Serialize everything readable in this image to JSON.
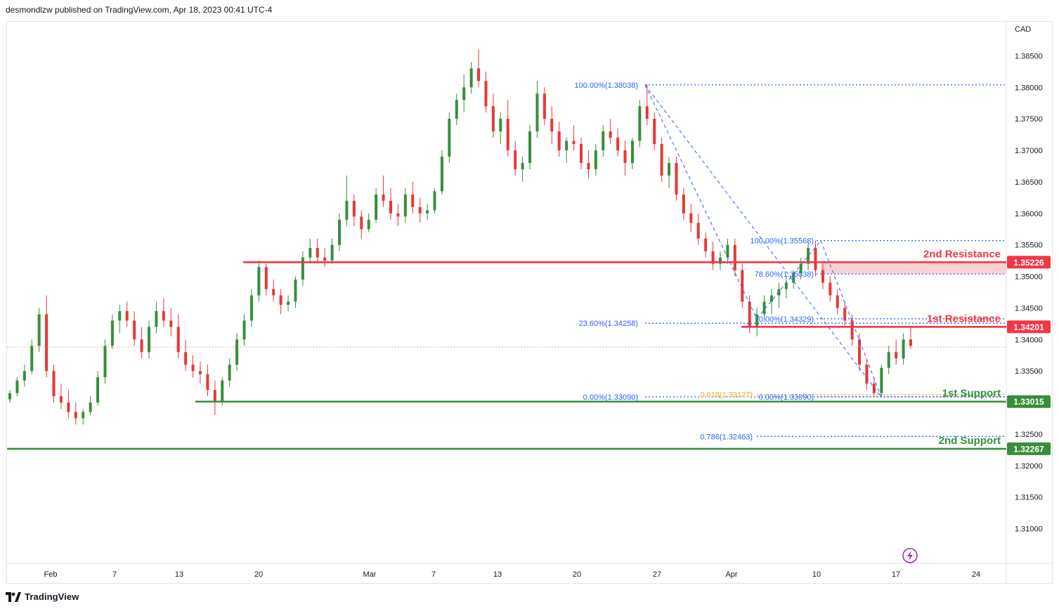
{
  "header": {
    "published_text": "desmondlzw published on TradingView.com, Apr 18, 2023 00:41 UTC-4"
  },
  "footer": {
    "brand": "TradingView"
  },
  "colors": {
    "up": "#388e3c",
    "down": "#e53935",
    "resistance": "#f23645",
    "support": "#388e3c",
    "fib": "#2962ff",
    "fib_golden": "#f5a623",
    "current_price_line": "#e57373",
    "resistance_zone": "#f7c6c6"
  },
  "chart_data": {
    "type": "candlestick",
    "symbol_currency": "CAD",
    "ylim": [
      1.3045,
      1.3905
    ],
    "y_ticks": [
      "1.38500",
      "1.38000",
      "1.37500",
      "1.37000",
      "1.36500",
      "1.36000",
      "1.35500",
      "1.35000",
      "1.34500",
      "1.34000",
      "1.33500",
      "1.32500",
      "1.32000",
      "1.31500",
      "1.31000"
    ],
    "x_ticks": [
      "Feb",
      "7",
      "13",
      "20",
      "Mar",
      "7",
      "13",
      "20",
      "27",
      "Apr",
      "10",
      "17",
      "24"
    ],
    "candles_ohlc": [
      [
        1.3305,
        1.332,
        1.33,
        1.3315
      ],
      [
        1.3315,
        1.334,
        1.331,
        1.3335
      ],
      [
        1.3335,
        1.336,
        1.3325,
        1.335
      ],
      [
        1.335,
        1.34,
        1.3345,
        1.339
      ],
      [
        1.339,
        1.345,
        1.338,
        1.344
      ],
      [
        1.344,
        1.347,
        1.334,
        1.335
      ],
      [
        1.335,
        1.336,
        1.33,
        1.331
      ],
      [
        1.331,
        1.333,
        1.329,
        1.33
      ],
      [
        1.33,
        1.332,
        1.3275,
        1.3285
      ],
      [
        1.3285,
        1.33,
        1.3265,
        1.3275
      ],
      [
        1.3275,
        1.329,
        1.3265,
        1.3285
      ],
      [
        1.3285,
        1.331,
        1.328,
        1.33
      ],
      [
        1.33,
        1.335,
        1.3295,
        1.334
      ],
      [
        1.334,
        1.34,
        1.333,
        1.339
      ],
      [
        1.339,
        1.344,
        1.3385,
        1.343
      ],
      [
        1.343,
        1.3455,
        1.341,
        1.3445
      ],
      [
        1.3445,
        1.346,
        1.342,
        1.343
      ],
      [
        1.343,
        1.3445,
        1.339,
        1.34
      ],
      [
        1.34,
        1.342,
        1.337,
        1.338
      ],
      [
        1.338,
        1.343,
        1.337,
        1.342
      ],
      [
        1.342,
        1.346,
        1.341,
        1.3445
      ],
      [
        1.3445,
        1.3465,
        1.342,
        1.343
      ],
      [
        1.343,
        1.345,
        1.3405,
        1.342
      ],
      [
        1.342,
        1.344,
        1.337,
        1.338
      ],
      [
        1.338,
        1.34,
        1.335,
        1.336
      ],
      [
        1.336,
        1.3375,
        1.334,
        1.335
      ],
      [
        1.335,
        1.3365,
        1.333,
        1.3345
      ],
      [
        1.3345,
        1.336,
        1.331,
        1.332
      ],
      [
        1.332,
        1.3335,
        1.328,
        1.33
      ],
      [
        1.33,
        1.334,
        1.3295,
        1.3335
      ],
      [
        1.3335,
        1.337,
        1.3325,
        1.336
      ],
      [
        1.336,
        1.341,
        1.335,
        1.34
      ],
      [
        1.34,
        1.344,
        1.339,
        1.343
      ],
      [
        1.343,
        1.348,
        1.342,
        1.347
      ],
      [
        1.347,
        1.3525,
        1.346,
        1.3515
      ],
      [
        1.3515,
        1.352,
        1.347,
        1.348
      ],
      [
        1.348,
        1.3495,
        1.346,
        1.347
      ],
      [
        1.347,
        1.348,
        1.344,
        1.3455
      ],
      [
        1.3455,
        1.347,
        1.3445,
        1.346
      ],
      [
        1.346,
        1.35,
        1.345,
        1.3495
      ],
      [
        1.3495,
        1.354,
        1.3485,
        1.353
      ],
      [
        1.353,
        1.356,
        1.352,
        1.3545
      ],
      [
        1.3545,
        1.356,
        1.352,
        1.353
      ],
      [
        1.353,
        1.3545,
        1.3515,
        1.3525
      ],
      [
        1.3525,
        1.356,
        1.352,
        1.355
      ],
      [
        1.355,
        1.36,
        1.354,
        1.359
      ],
      [
        1.359,
        1.366,
        1.358,
        1.362
      ],
      [
        1.362,
        1.363,
        1.358,
        1.3595
      ],
      [
        1.3595,
        1.3605,
        1.356,
        1.3575
      ],
      [
        1.3575,
        1.36,
        1.357,
        1.359
      ],
      [
        1.359,
        1.364,
        1.3585,
        1.363
      ],
      [
        1.363,
        1.366,
        1.361,
        1.362
      ],
      [
        1.362,
        1.364,
        1.359,
        1.36
      ],
      [
        1.36,
        1.3615,
        1.358,
        1.3595
      ],
      [
        1.3595,
        1.364,
        1.3585,
        1.363
      ],
      [
        1.363,
        1.365,
        1.36,
        1.361
      ],
      [
        1.361,
        1.3625,
        1.3585,
        1.36
      ],
      [
        1.36,
        1.3615,
        1.359,
        1.3605
      ],
      [
        1.3605,
        1.364,
        1.36,
        1.3635
      ],
      [
        1.3635,
        1.37,
        1.363,
        1.369
      ],
      [
        1.369,
        1.376,
        1.368,
        1.375
      ],
      [
        1.375,
        1.379,
        1.374,
        1.378
      ],
      [
        1.378,
        1.382,
        1.376,
        1.38
      ],
      [
        1.38,
        1.384,
        1.379,
        1.383
      ],
      [
        1.383,
        1.386,
        1.38,
        1.381
      ],
      [
        1.381,
        1.3825,
        1.376,
        1.377
      ],
      [
        1.377,
        1.379,
        1.372,
        1.373
      ],
      [
        1.373,
        1.376,
        1.371,
        1.375
      ],
      [
        1.375,
        1.378,
        1.369,
        1.37
      ],
      [
        1.37,
        1.3715,
        1.366,
        1.367
      ],
      [
        1.367,
        1.369,
        1.365,
        1.368
      ],
      [
        1.368,
        1.374,
        1.367,
        1.373
      ],
      [
        1.373,
        1.381,
        1.372,
        1.379
      ],
      [
        1.379,
        1.38,
        1.374,
        1.375
      ],
      [
        1.375,
        1.377,
        1.371,
        1.373
      ],
      [
        1.373,
        1.3745,
        1.369,
        1.37
      ],
      [
        1.37,
        1.372,
        1.368,
        1.3715
      ],
      [
        1.3715,
        1.374,
        1.37,
        1.371
      ],
      [
        1.371,
        1.372,
        1.367,
        1.368
      ],
      [
        1.368,
        1.37,
        1.3655,
        1.367
      ],
      [
        1.367,
        1.371,
        1.366,
        1.37
      ],
      [
        1.37,
        1.374,
        1.369,
        1.373
      ],
      [
        1.373,
        1.375,
        1.371,
        1.372
      ],
      [
        1.372,
        1.3735,
        1.369,
        1.37
      ],
      [
        1.37,
        1.3715,
        1.366,
        1.368
      ],
      [
        1.368,
        1.372,
        1.367,
        1.3715
      ],
      [
        1.3715,
        1.378,
        1.3705,
        1.377
      ],
      [
        1.377,
        1.3805,
        1.374,
        1.375
      ],
      [
        1.375,
        1.376,
        1.37,
        1.371
      ],
      [
        1.371,
        1.372,
        1.365,
        1.366
      ],
      [
        1.366,
        1.369,
        1.364,
        1.368
      ],
      [
        1.368,
        1.369,
        1.362,
        1.363
      ],
      [
        1.363,
        1.364,
        1.359,
        1.36
      ],
      [
        1.36,
        1.3615,
        1.357,
        1.3585
      ],
      [
        1.3585,
        1.36,
        1.355,
        1.356
      ],
      [
        1.356,
        1.357,
        1.353,
        1.354
      ],
      [
        1.354,
        1.3555,
        1.351,
        1.352
      ],
      [
        1.352,
        1.354,
        1.351,
        1.353
      ],
      [
        1.353,
        1.356,
        1.352,
        1.355
      ],
      [
        1.355,
        1.356,
        1.35,
        1.351
      ],
      [
        1.351,
        1.352,
        1.345,
        1.346
      ],
      [
        1.346,
        1.347,
        1.341,
        1.342
      ],
      [
        1.342,
        1.345,
        1.3405,
        1.344
      ],
      [
        1.344,
        1.347,
        1.343,
        1.346
      ],
      [
        1.346,
        1.348,
        1.344,
        1.347
      ],
      [
        1.347,
        1.349,
        1.345,
        1.348
      ],
      [
        1.348,
        1.35,
        1.3465,
        1.349
      ],
      [
        1.349,
        1.351,
        1.348,
        1.3505
      ],
      [
        1.3505,
        1.353,
        1.3495,
        1.352
      ],
      [
        1.352,
        1.3555,
        1.351,
        1.3545
      ],
      [
        1.3545,
        1.3557,
        1.35,
        1.351
      ],
      [
        1.351,
        1.352,
        1.348,
        1.349
      ],
      [
        1.349,
        1.35,
        1.346,
        1.347
      ],
      [
        1.347,
        1.348,
        1.344,
        1.345
      ],
      [
        1.345,
        1.346,
        1.342,
        1.343
      ],
      [
        1.343,
        1.344,
        1.339,
        1.34
      ],
      [
        1.34,
        1.341,
        1.335,
        1.336
      ],
      [
        1.336,
        1.337,
        1.332,
        1.333
      ],
      [
        1.333,
        1.334,
        1.3309,
        1.3315
      ],
      [
        1.3315,
        1.336,
        1.331,
        1.3355
      ],
      [
        1.3355,
        1.339,
        1.3345,
        1.338
      ],
      [
        1.338,
        1.34,
        1.336,
        1.337
      ],
      [
        1.337,
        1.341,
        1.336,
        1.34
      ],
      [
        1.34,
        1.342,
        1.3385,
        1.339
      ]
    ],
    "current_price": 1.3388,
    "horizontal_levels": [
      {
        "name": "2nd Resistance",
        "price": 1.35226,
        "price_label": "1.35226",
        "role": "resistance"
      },
      {
        "name": "1st Resistance",
        "price": 1.34201,
        "price_label": "1.34201",
        "role": "resistance"
      },
      {
        "name": "1st Support",
        "price": 1.33015,
        "price_label": "1.33015",
        "role": "support"
      },
      {
        "name": "2nd Support",
        "price": 1.32267,
        "price_label": "1.32267",
        "role": "support"
      }
    ],
    "fib_labels": [
      {
        "text": "100.00%(1.38038)",
        "price": 1.38038,
        "color": "fib"
      },
      {
        "text": "23.60%(1.34258)",
        "price": 1.34258,
        "color": "fib"
      },
      {
        "text": "0.00%(1.33090)",
        "price": 1.3309,
        "color": "fib"
      },
      {
        "text": "100.00%(1.35568)",
        "price": 1.35568,
        "color": "fib"
      },
      {
        "text": "78.60%(1.35038)",
        "price": 1.35038,
        "color": "fib"
      },
      {
        "text": "0.00%(1.34329)",
        "price": 1.34329,
        "color": "fib"
      },
      {
        "text": "0.00%(1.33090)",
        "price": 1.3309,
        "color": "fib"
      },
      {
        "text": "0.618(1.33127)",
        "price": 1.33127,
        "color": "fib_golden"
      },
      {
        "text": "0.786(1.32463)",
        "price": 1.32463,
        "color": "fib"
      }
    ]
  }
}
